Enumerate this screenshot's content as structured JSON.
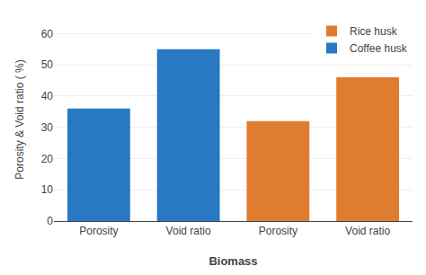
{
  "chart_data": {
    "type": "bar",
    "categories": [
      "Porosity",
      "Void ratio",
      "Porosity",
      "Void ratio"
    ],
    "series": [
      {
        "name": "Rice husk",
        "color": "#e07c30",
        "values": [
          null,
          null,
          32,
          46
        ]
      },
      {
        "name": "Coffee husk",
        "color": "#2878c4",
        "values": [
          36,
          55,
          null,
          null
        ]
      }
    ],
    "xlabel": "Biomass",
    "ylabel": "Porosity & Void ratio ( %)",
    "ylim": [
      0,
      65
    ],
    "yticks": [
      0,
      10,
      20,
      30,
      40,
      50,
      60
    ],
    "grid": true,
    "legend": "upper right"
  }
}
